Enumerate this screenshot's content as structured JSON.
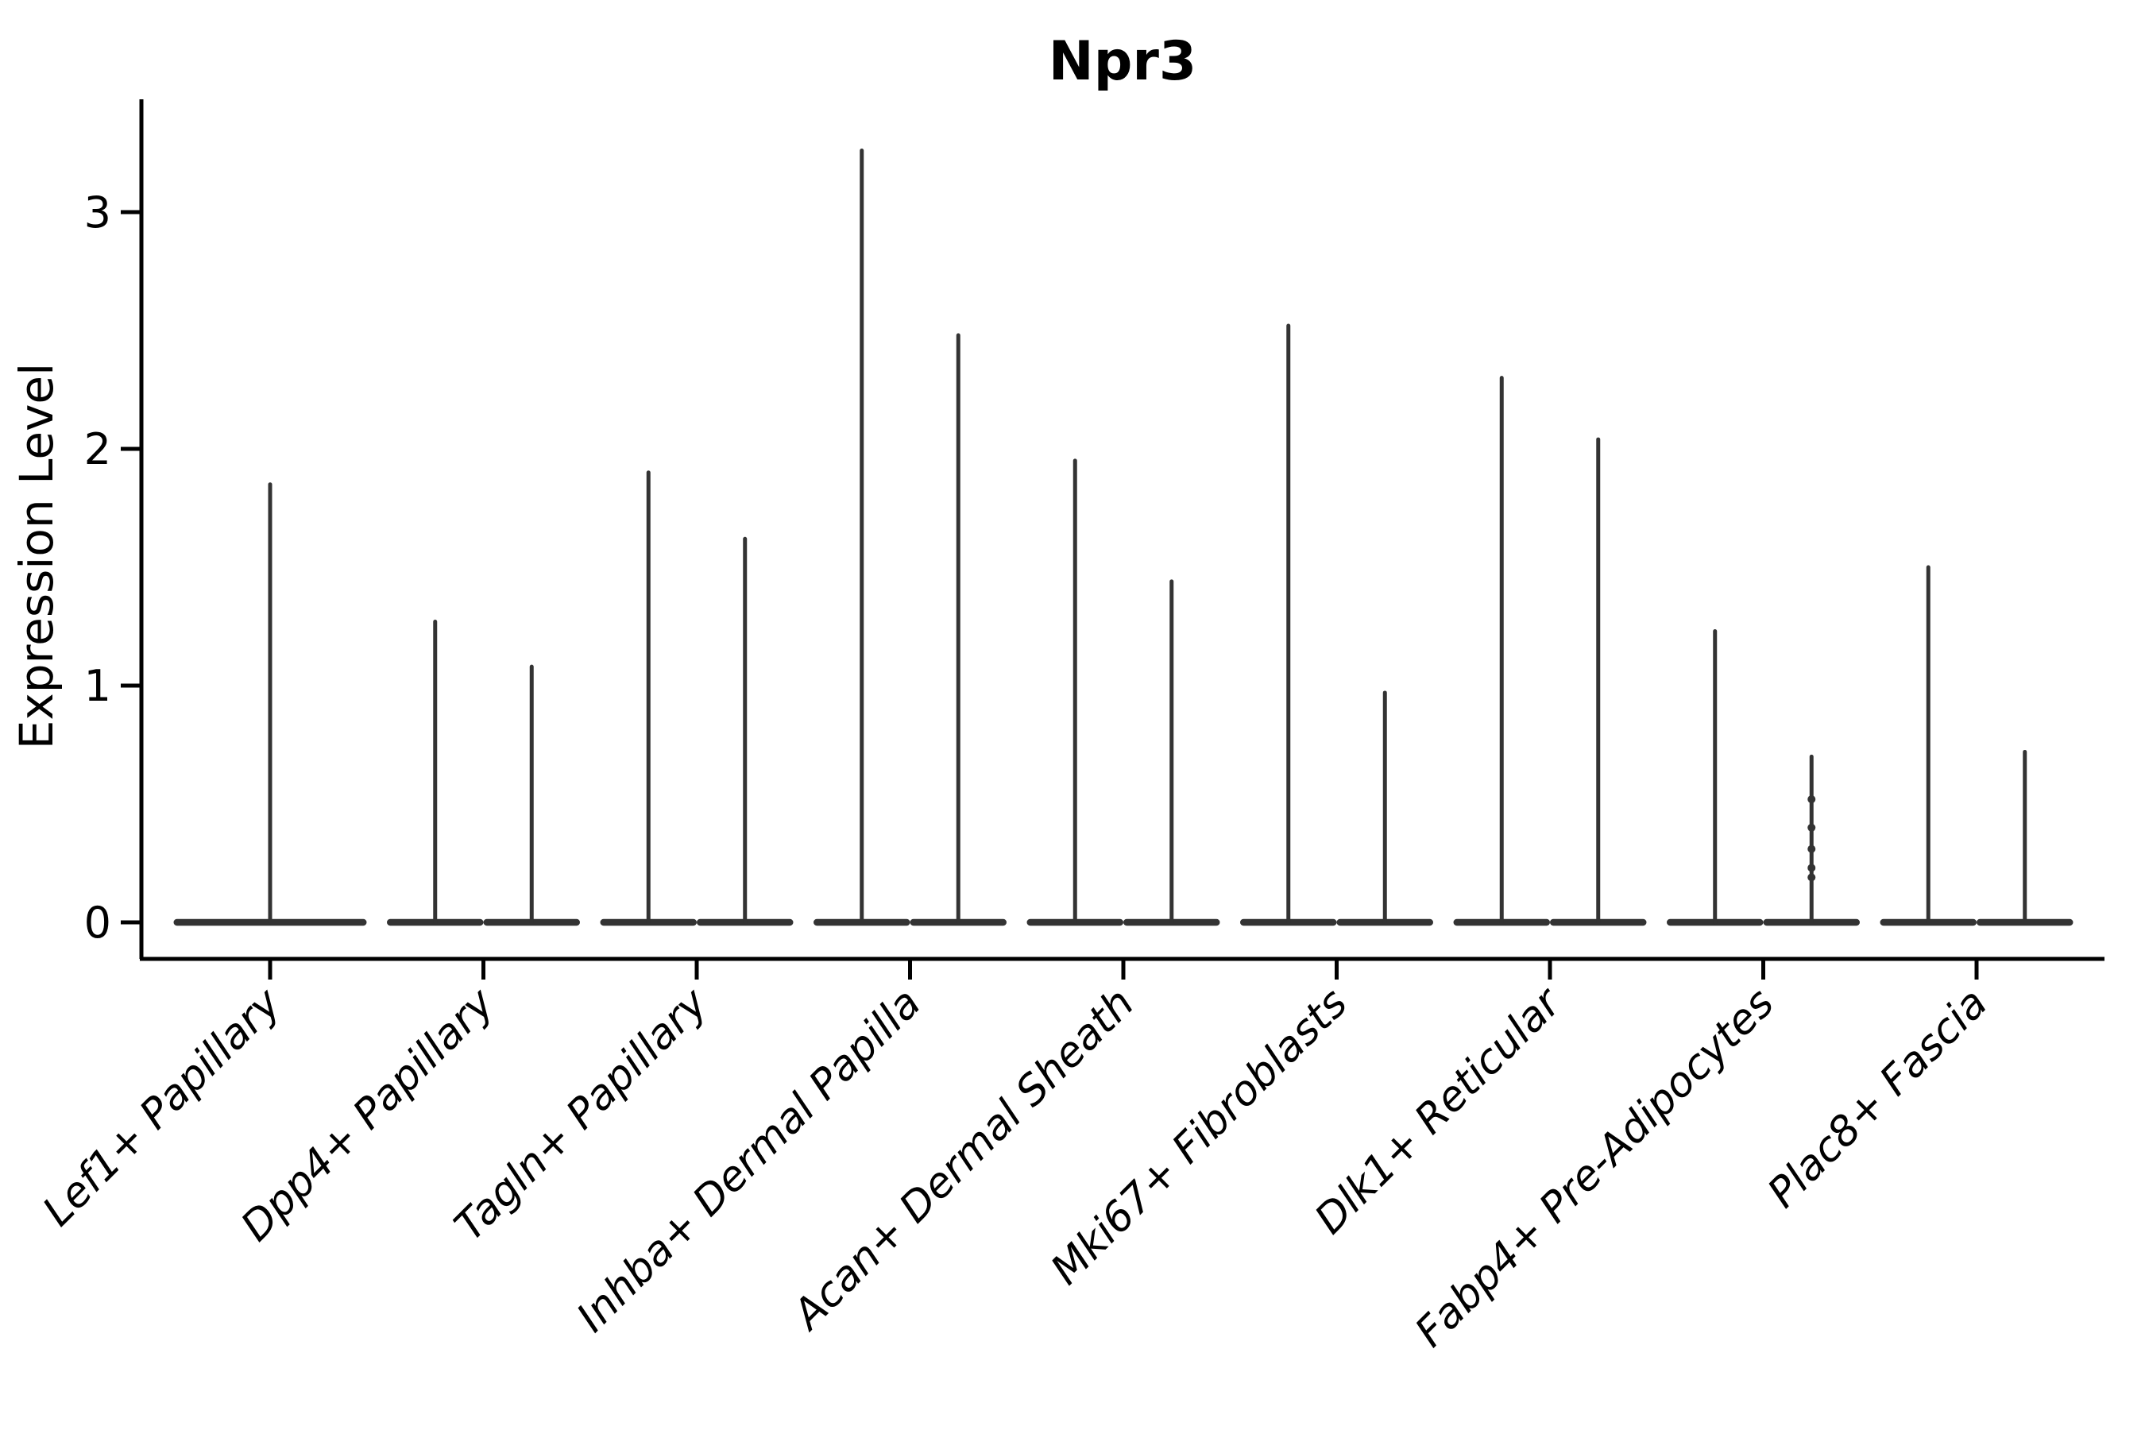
{
  "chart_data": {
    "type": "violin",
    "title": "Npr3",
    "xlabel": "",
    "ylabel": "Expression Level",
    "yticks": [
      0,
      1,
      2,
      3
    ],
    "ylim": [
      -0.15,
      3.48
    ],
    "grid": false,
    "legend": null,
    "categories": [
      "Lef1+ Papillary",
      "Dpp4+ Papillary",
      "Tagln+ Papillary",
      "Inhba+ Dermal Papilla",
      "Acan+ Dermal Sheath",
      "Mki67+ Fibroblasts",
      "Dlk1+ Reticular",
      "Fabp4+ Pre-Adipocytes",
      "Plac8+ Fascia"
    ],
    "violins_per_category_note": "thin zero-inflated violins: wide flat body at 0 with a thin spike up to the max expression; first category has a single centered violin, all others have two side-by-side violins",
    "violins": [
      {
        "category": "Lef1+ Papillary",
        "spike_maxima": [
          1.85
        ]
      },
      {
        "category": "Dpp4+ Papillary",
        "spike_maxima": [
          1.27,
          1.08
        ]
      },
      {
        "category": "Tagln+ Papillary",
        "spike_maxima": [
          1.9,
          1.62
        ]
      },
      {
        "category": "Inhba+ Dermal Papilla",
        "spike_maxima": [
          3.26,
          2.48
        ]
      },
      {
        "category": "Acan+ Dermal Sheath",
        "spike_maxima": [
          1.95,
          1.44
        ]
      },
      {
        "category": "Mki67+ Fibroblasts",
        "spike_maxima": [
          2.52,
          0.97
        ]
      },
      {
        "category": "Dlk1+ Reticular",
        "spike_maxima": [
          2.3,
          2.04
        ]
      },
      {
        "category": "Fabp4+ Pre-Adipocytes",
        "spike_maxima": [
          1.23,
          0.7
        ],
        "jitter_points": {
          "violin_index": 1,
          "values": [
            0.52,
            0.4,
            0.31,
            0.23,
            0.19
          ]
        }
      },
      {
        "category": "Plac8+ Fascia",
        "spike_maxima": [
          1.5,
          0.72
        ]
      }
    ],
    "style": {
      "violin_color": "#333333",
      "axis_color": "#000000",
      "text_color": "#000000",
      "background": "#ffffff"
    }
  }
}
